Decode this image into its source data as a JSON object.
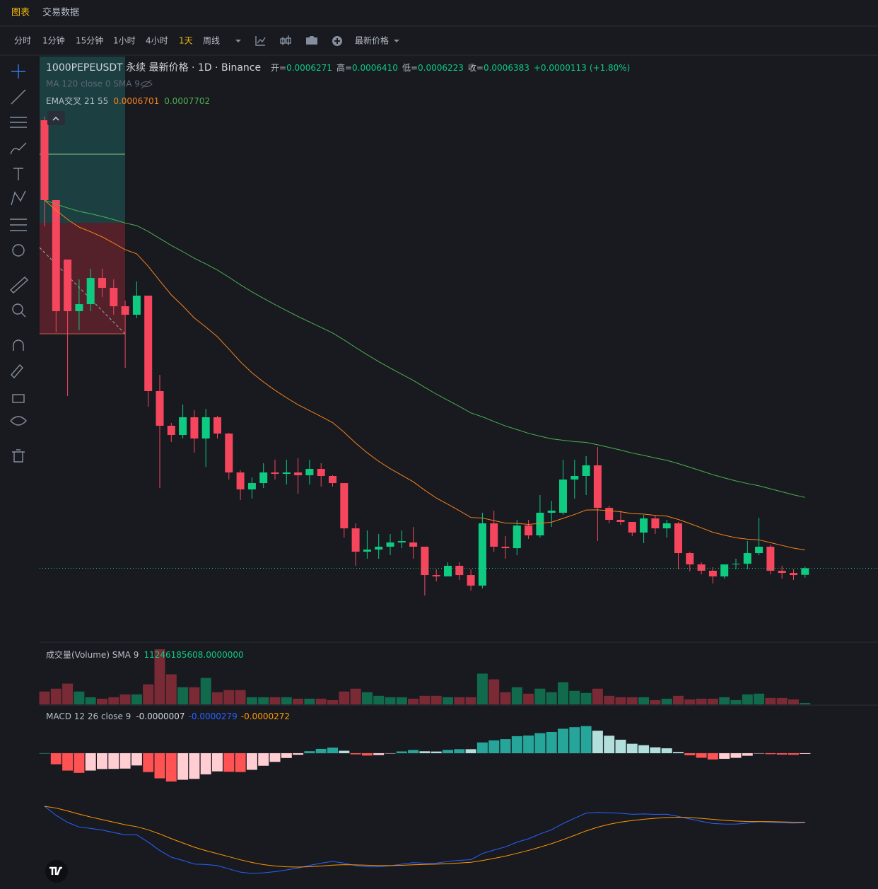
{
  "tabs": [
    "图表",
    "交易数据"
  ],
  "toolbar": {
    "intervals": [
      "分时",
      "1分钟",
      "15分钟",
      "1小时",
      "4小时",
      "1天",
      "周线"
    ],
    "active": 5,
    "price_type": "最新价格"
  },
  "chart_data": {
    "type": "candlestick",
    "title": "1000PEPEUSDT 永续 最新价格 · 1D · Binance",
    "ohlc_names": [
      "开=",
      "高=",
      "低=",
      "收="
    ],
    "last_labels": [
      "0.0006271",
      "0.0006410",
      "0.0006223",
      "0.0006383"
    ],
    "change": "+0.0000113",
    "change_pct": "(+1.80%)",
    "ma_label": "MA 120 close 0 SMA 9",
    "ema_label": "EMA交叉 21 55",
    "ema_values": [
      0.0006701,
      0.0007702
    ],
    "ema_colors": [
      "#f7821b",
      "#4caf50"
    ],
    "up_color": "#0ecb81",
    "down_color": "#f6465d",
    "candles": [
      [
        0.0014022,
        0.0014082,
        0.0012213,
        0.0012659
      ],
      [
        0.0012659,
        0.0012659,
        0.0010404,
        0.0010766
      ],
      [
        0.0011646,
        0.0011646,
        0.0009318,
        0.0010766
      ],
      [
        0.0010766,
        0.0011308,
        0.001044,
        0.0010886
      ],
      [
        0.0010886,
        0.0011489,
        0.0010766,
        0.0011332
      ],
      [
        0.0011332,
        0.0011489,
        0.0011007,
        0.0011164
      ],
      [
        0.0011164,
        0.0011308,
        0.0010705,
        0.001085
      ],
      [
        0.001085,
        0.0010947,
        0.0009801,
        0.0010705
      ],
      [
        0.0010705,
        0.0011272,
        0.0010645,
        0.0011031
      ],
      [
        0.0011031,
        0.0011031,
        0.0009138,
        0.0009403
      ],
      [
        0.0009403,
        0.000968,
        0.0007751,
        0.0008812
      ],
      [
        0.0008812,
        0.000886,
        0.0008535,
        0.0008655
      ],
      [
        0.0008655,
        0.0009174,
        0.0008595,
        0.0008957
      ],
      [
        0.0008957,
        0.0009077,
        0.0008354,
        0.0008595
      ],
      [
        0.0008595,
        0.0009101,
        0.0008112,
        0.0008957
      ],
      [
        0.0008957,
        0.0008981,
        0.0008595,
        0.0008679
      ],
      [
        0.0008679,
        0.0008691,
        0.0007895,
        0.0008016
      ],
      [
        0.0008016,
        0.0008052,
        0.0007546,
        0.0007727
      ],
      [
        0.0007727,
        0.0007932,
        0.000757,
        0.0007835
      ],
      [
        0.0007835,
        0.0008173,
        0.0007751,
        0.0008016
      ],
      [
        0.0008016,
        0.0008233,
        0.0007895,
        0.0007992
      ],
      [
        0.0007992,
        0.0008233,
        0.0007811,
        0.0008016
      ],
      [
        0.0008016,
        0.0008257,
        0.0007654,
        0.0007968
      ],
      [
        0.0007968,
        0.0008233,
        0.0007811,
        0.0008076
      ],
      [
        0.0008076,
        0.0008173,
        0.0007775,
        0.0007956
      ],
      [
        0.0007956,
        0.0007968,
        0.0007775,
        0.0007835
      ],
      [
        0.0007835,
        0.0007835,
        0.0006906,
        0.0007063
      ],
      [
        0.0007063,
        0.0007148,
        0.0006424,
        0.0006665
      ],
      [
        0.0006665,
        0.0007027,
        0.0006545,
        0.0006701
      ],
      [
        0.0006701,
        0.0006967,
        0.0006545,
        0.000675
      ],
      [
        0.000675,
        0.0006967,
        0.0006605,
        0.0006822
      ],
      [
        0.0006822,
        0.0007027,
        0.0006725,
        0.0006846
      ],
      [
        0.0006822,
        0.0007087,
        0.0006545,
        0.000675
      ],
      [
        0.000675,
        0.000675,
        0.0005918,
        0.0006267
      ],
      [
        0.0006267,
        0.0006364,
        0.0006159,
        0.0006243
      ],
      [
        0.0006243,
        0.0006484,
        0.0006243,
        0.0006424
      ],
      [
        0.0006424,
        0.0006484,
        0.0006183,
        0.0006267
      ],
      [
        0.0006267,
        0.0006364,
        0.0006002,
        0.0006086
      ],
      [
        0.0006086,
        0.0007329,
        0.0006038,
        0.0007148
      ],
      [
        0.0007148,
        0.0007365,
        0.0006665,
        0.000675
      ],
      [
        0.000675,
        0.0006931,
        0.0006545,
        0.0006725
      ],
      [
        0.0006725,
        0.0007208,
        0.0006605,
        0.0007111
      ],
      [
        0.0007111,
        0.0007208,
        0.0006882,
        0.0006943
      ],
      [
        0.0006943,
        0.000763,
        0.0006906,
        0.0007329
      ],
      [
        0.0007329,
        0.0007534,
        0.0007087,
        0.0007365
      ],
      [
        0.0007329,
        0.0008233,
        0.0007292,
        0.0007895
      ],
      [
        0.0007895,
        0.0008233,
        0.000757,
        0.0007956
      ],
      [
        0.0007956,
        0.0008293,
        0.000763,
        0.0008137
      ],
      [
        0.0008137,
        0.000845,
        0.0006846,
        0.0007413
      ],
      [
        0.0007413,
        0.0007449,
        0.0007148,
        0.0007208
      ],
      [
        0.0007208,
        0.0007365,
        0.0007124,
        0.0007172
      ],
      [
        0.0007172,
        0.0007172,
        0.0006931,
        0.0006991
      ],
      [
        0.0006991,
        0.0007292,
        0.000681,
        0.0007232
      ],
      [
        0.0007232,
        0.0007292,
        0.0006967,
        0.0007063
      ],
      [
        0.0007063,
        0.0007208,
        0.0006906,
        0.0007148
      ],
      [
        0.0007148,
        0.0007172,
        0.0006364,
        0.0006641
      ],
      [
        0.0006641,
        0.0006665,
        0.0006328,
        0.0006448
      ],
      [
        0.0006448,
        0.0006484,
        0.0006279,
        0.000634
      ],
      [
        0.000634,
        0.00064,
        0.0006122,
        0.0006243
      ],
      [
        0.0006243,
        0.0006448,
        0.0006207,
        0.0006448
      ],
      [
        0.0006448,
        0.0006545,
        0.0006364,
        0.000646
      ],
      [
        0.000646,
        0.0006846,
        0.0006364,
        0.0006641
      ],
      [
        0.0006641,
        0.0007244,
        0.0006605,
        0.000675
      ],
      [
        0.000675,
        0.0006786,
        0.0006279,
        0.000634
      ],
      [
        0.000634,
        0.0006424,
        0.0006207,
        0.0006303
      ],
      [
        0.0006303,
        0.0006364,
        0.0006183,
        0.0006267
      ],
      [
        0.0006271,
        0.000641,
        0.0006223,
        0.0006383
      ]
    ],
    "volume": {
      "label": "成交量(Volume) SMA 9",
      "sma": "11246185608.0000000",
      "up_color": "#116a4c",
      "down_color": "#7a2a35",
      "values": [
        22500000000.0,
        27500000000.0,
        36250000000.0,
        22500000000.0,
        12500000000.0,
        10000000000.0,
        12500000000.0,
        17500000000.0,
        17500000000.0,
        35000000000.0,
        96250000000.0,
        52500000000.0,
        30000000000.0,
        30000000000.0,
        46250000000.0,
        21250000000.0,
        25000000000.0,
        25000000000.0,
        12500000000.0,
        12500000000.0,
        12500000000.0,
        12500000000.0,
        10000000000.0,
        10000000000.0,
        10000000000.0,
        7500000000.0,
        22500000000.0,
        27500000000.0,
        21250000000.0,
        15000000000.0,
        12500000000.0,
        12500000000.0,
        10000000000.0,
        15000000000.0,
        15000000000.0,
        12500000000.0,
        12500000000.0,
        12500000000.0,
        53750000000.0,
        43750000000.0,
        21250000000.0,
        30000000000.0,
        18750000000.0,
        27500000000.0,
        21250000000.0,
        38750000000.0,
        23750000000.0,
        20000000000.0,
        27500000000.0,
        15000000000.0,
        12500000000.0,
        12500000000.0,
        12500000000.0,
        7500000000.0,
        10000000000.0,
        15000000000.0,
        8750000000.0,
        10000000000.0,
        10000000000.0,
        12500000000.0,
        7500000000.0,
        17500000000.0,
        18750000000.0,
        11250000000.0,
        11250000000.0,
        8750000000.0,
        2500000000.0
      ]
    },
    "macd": {
      "label": "MACD 12 26 close 9",
      "value_labels": [
        "-0.0000007",
        "-0.0000279",
        "-0.0000272"
      ],
      "colors": [
        "#d1d4dc",
        "#2962ff",
        "#ff9800"
      ]
    }
  }
}
